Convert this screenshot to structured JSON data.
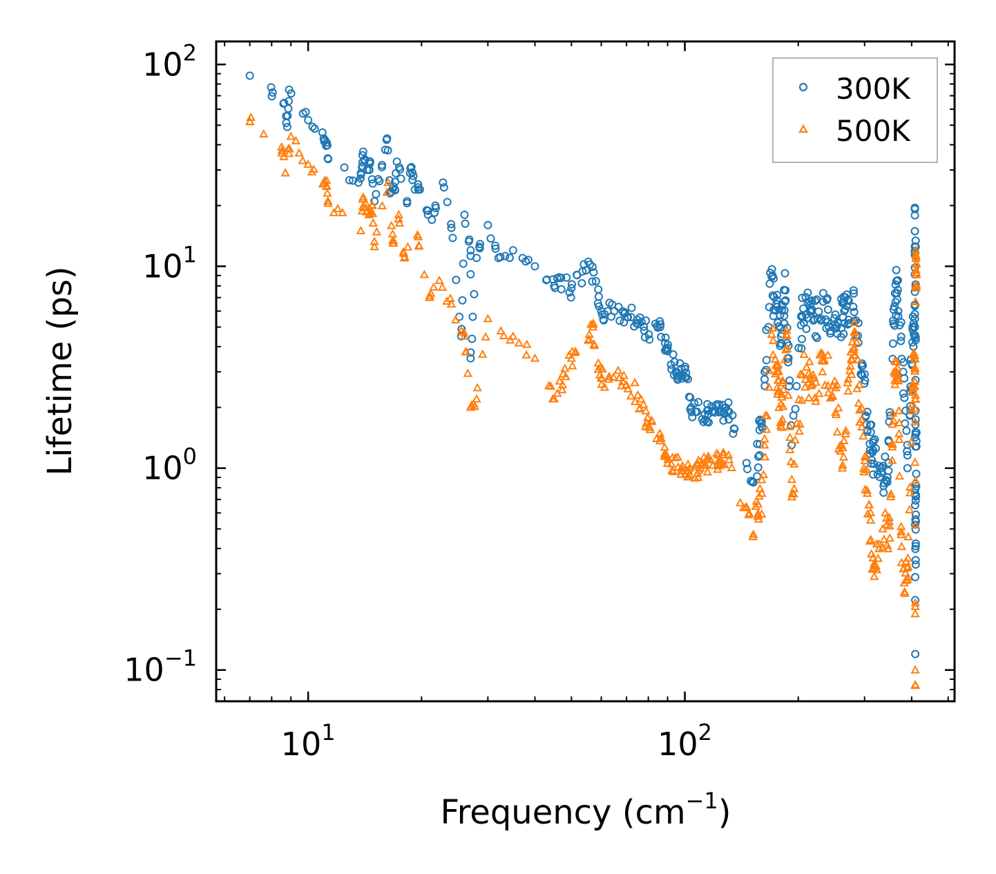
{
  "chart_data": {
    "type": "scatter",
    "xscale": "log",
    "yscale": "log",
    "xlim": [
      5.7,
      520
    ],
    "ylim": [
      0.07,
      130
    ],
    "xlabel": {
      "main": "Frequency (cm",
      "sup": "−1",
      "end": ")"
    },
    "ylabel": "Lifetime (ps)",
    "x_ticks": [
      {
        "value": 10,
        "base": "10",
        "exp": "1"
      },
      {
        "value": 100,
        "base": "10",
        "exp": "2"
      }
    ],
    "y_ticks": [
      {
        "value": 0.1,
        "base": "10",
        "exp": "−1"
      },
      {
        "value": 1,
        "base": "10",
        "exp": "0"
      },
      {
        "value": 10,
        "base": "10",
        "exp": "1"
      },
      {
        "value": 100,
        "base": "10",
        "exp": "2"
      }
    ],
    "legend_position": "top-right",
    "colors": {
      "300K": "#1f77b4",
      "500K": "#ff7f0e"
    },
    "series": [
      {
        "name": "300K",
        "marker": "circle",
        "color": "#1f77b4",
        "anchors": [
          [
            7.0,
            88
          ],
          [
            8.6,
            64
          ],
          [
            8.9,
            75
          ],
          [
            8.8,
            49
          ],
          [
            10.0,
            53
          ],
          [
            11.0,
            43
          ],
          [
            11.2,
            41
          ],
          [
            11.3,
            34
          ],
          [
            13.6,
            26
          ],
          [
            14.0,
            37
          ],
          [
            13.9,
            31
          ],
          [
            14.5,
            30
          ],
          [
            14.6,
            33
          ],
          [
            15.0,
            21
          ],
          [
            15.7,
            31
          ],
          [
            16.2,
            43
          ],
          [
            16.5,
            23
          ],
          [
            17.0,
            24
          ],
          [
            17.2,
            33
          ],
          [
            18.3,
            21
          ],
          [
            18.8,
            31
          ],
          [
            19.2,
            24
          ],
          [
            19.8,
            24
          ],
          [
            21.3,
            17
          ],
          [
            22.8,
            26
          ],
          [
            24.0,
            15.5
          ],
          [
            26.0,
            18
          ],
          [
            27.0,
            12
          ],
          [
            28.0,
            11
          ],
          [
            30.0,
            16
          ],
          [
            32.0,
            11
          ],
          [
            35.0,
            12
          ],
          [
            40.0,
            10
          ],
          [
            45.0,
            8
          ],
          [
            50.0,
            7.8
          ],
          [
            56.0,
            10.2
          ],
          [
            60.0,
            6
          ],
          [
            65.0,
            6
          ],
          [
            72.0,
            5.6
          ],
          [
            78.0,
            4.8
          ],
          [
            86.0,
            5.0
          ],
          [
            90.0,
            3.8
          ],
          [
            95.0,
            3.0
          ],
          [
            100.0,
            3.1
          ],
          [
            104.0,
            2.0
          ],
          [
            27.0,
            3.5
          ],
          [
            25.5,
            4.5
          ],
          [
            113.0,
            1.85
          ],
          [
            118.0,
            1.9
          ],
          [
            125.0,
            1.9
          ],
          [
            131.0,
            1.9
          ],
          [
            152.0,
            0.85
          ],
          [
            160.0,
            1.7
          ],
          [
            168.0,
            8.2
          ],
          [
            175.0,
            6.5
          ],
          [
            180.0,
            4.5
          ],
          [
            185.0,
            7.6
          ],
          [
            192.0,
            1.3
          ],
          [
            205.0,
            5.6
          ],
          [
            215.0,
            6.0
          ],
          [
            225.0,
            5.5
          ],
          [
            240.0,
            6.1
          ],
          [
            255.0,
            5.3
          ],
          [
            265.0,
            6.0
          ],
          [
            280.0,
            6.3
          ],
          [
            295.0,
            3.2
          ],
          [
            305.0,
            1.9
          ],
          [
            315.0,
            1.2
          ],
          [
            330.0,
            1.0
          ],
          [
            345.0,
            0.9
          ],
          [
            358.0,
            5.2
          ],
          [
            366.0,
            8.5
          ],
          [
            380.0,
            3.0
          ],
          [
            390.0,
            1.0
          ],
          [
            402.0,
            4.2
          ],
          [
            408.0,
            5.5
          ],
          [
            410.0,
            12.5
          ],
          [
            408.0,
            19.5
          ],
          [
            412.0,
            1.5
          ],
          [
            410.0,
            0.35
          ],
          [
            409.0,
            0.12
          ]
        ]
      },
      {
        "name": "500K",
        "marker": "triangle",
        "color": "#ff7f0e",
        "anchors": [
          [
            7.0,
            52
          ],
          [
            8.5,
            39
          ],
          [
            8.7,
            29
          ],
          [
            9.0,
            44
          ],
          [
            10.0,
            32
          ],
          [
            11.0,
            26
          ],
          [
            11.2,
            25
          ],
          [
            11.3,
            20.5
          ],
          [
            13.8,
            15
          ],
          [
            14.0,
            22
          ],
          [
            14.5,
            18
          ],
          [
            14.8,
            20
          ],
          [
            15.0,
            12.5
          ],
          [
            16.3,
            26
          ],
          [
            16.8,
            13
          ],
          [
            17.4,
            18
          ],
          [
            18.0,
            11
          ],
          [
            19.6,
            14
          ],
          [
            21.0,
            7
          ],
          [
            22.3,
            8.5
          ],
          [
            24.0,
            6.5
          ],
          [
            26.0,
            4.5
          ],
          [
            27.0,
            2.0
          ],
          [
            28.0,
            2.2
          ],
          [
            30.0,
            5.5
          ],
          [
            35.0,
            4.5
          ],
          [
            40.0,
            3.5
          ],
          [
            45.0,
            2.2
          ],
          [
            50.0,
            3.5
          ],
          [
            57.0,
            5.0
          ],
          [
            60.0,
            2.8
          ],
          [
            67.0,
            2.8
          ],
          [
            75.0,
            2.3
          ],
          [
            80.0,
            1.6
          ],
          [
            86.0,
            1.4
          ],
          [
            92.0,
            1.05
          ],
          [
            98.0,
            1.0
          ],
          [
            103.0,
            1.0
          ],
          [
            110.0,
            1.0
          ],
          [
            117.0,
            1.1
          ],
          [
            124.0,
            1.1
          ],
          [
            131.0,
            1.1
          ],
          [
            152.0,
            0.47
          ],
          [
            160.0,
            0.75
          ],
          [
            170.0,
            4.6
          ],
          [
            176.0,
            3.2
          ],
          [
            180.0,
            1.7
          ],
          [
            186.0,
            4.6
          ],
          [
            193.0,
            0.75
          ],
          [
            205.0,
            2.9
          ],
          [
            218.0,
            2.6
          ],
          [
            232.0,
            3.0
          ],
          [
            250.0,
            2.7
          ],
          [
            262.0,
            1.0
          ],
          [
            275.0,
            3.2
          ],
          [
            282.0,
            4.5
          ],
          [
            295.0,
            1.6
          ],
          [
            305.0,
            0.75
          ],
          [
            318.0,
            0.32
          ],
          [
            335.0,
            0.5
          ],
          [
            350.0,
            0.45
          ],
          [
            360.0,
            3.0
          ],
          [
            368.0,
            2.8
          ],
          [
            376.0,
            0.34
          ],
          [
            390.0,
            0.28
          ],
          [
            402.0,
            2.4
          ],
          [
            408.0,
            3.5
          ],
          [
            410.0,
            12.0
          ],
          [
            412.0,
            8.0
          ],
          [
            409.0,
            0.1
          ]
        ]
      }
    ]
  }
}
